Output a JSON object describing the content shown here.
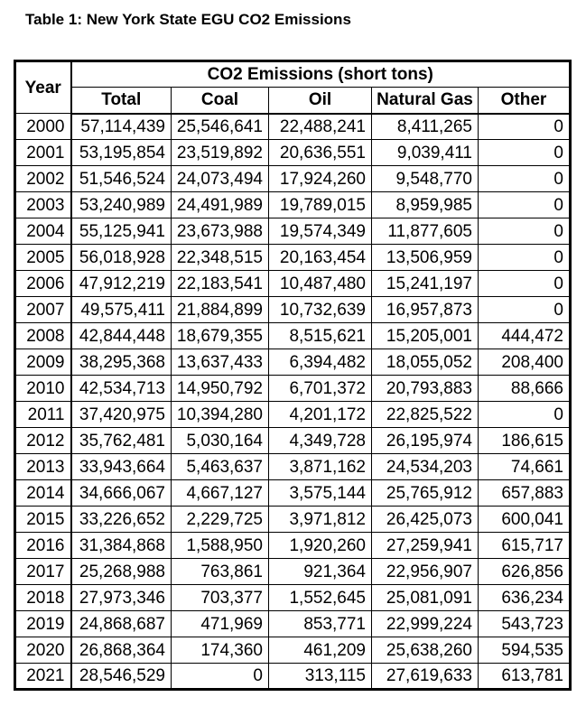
{
  "title": "Table 1: New York State EGU CO2 Emissions",
  "colors": {
    "border": "#000000",
    "text": "#000000",
    "background": "#ffffff"
  },
  "table": {
    "header": {
      "year_label": "Year",
      "group_label": "CO2 Emissions (short tons)",
      "columns": [
        "Total",
        "Coal",
        "Oil",
        "Natural Gas",
        "Other"
      ]
    },
    "rows": [
      {
        "year": "2000",
        "total": "57,114,439",
        "coal": "25,546,641",
        "oil": "22,488,241",
        "natural_gas": "8,411,265",
        "other": "0"
      },
      {
        "year": "2001",
        "total": "53,195,854",
        "coal": "23,519,892",
        "oil": "20,636,551",
        "natural_gas": "9,039,411",
        "other": "0"
      },
      {
        "year": "2002",
        "total": "51,546,524",
        "coal": "24,073,494",
        "oil": "17,924,260",
        "natural_gas": "9,548,770",
        "other": "0"
      },
      {
        "year": "2003",
        "total": "53,240,989",
        "coal": "24,491,989",
        "oil": "19,789,015",
        "natural_gas": "8,959,985",
        "other": "0"
      },
      {
        "year": "2004",
        "total": "55,125,941",
        "coal": "23,673,988",
        "oil": "19,574,349",
        "natural_gas": "11,877,605",
        "other": "0"
      },
      {
        "year": "2005",
        "total": "56,018,928",
        "coal": "22,348,515",
        "oil": "20,163,454",
        "natural_gas": "13,506,959",
        "other": "0"
      },
      {
        "year": "2006",
        "total": "47,912,219",
        "coal": "22,183,541",
        "oil": "10,487,480",
        "natural_gas": "15,241,197",
        "other": "0"
      },
      {
        "year": "2007",
        "total": "49,575,411",
        "coal": "21,884,899",
        "oil": "10,732,639",
        "natural_gas": "16,957,873",
        "other": "0"
      },
      {
        "year": "2008",
        "total": "42,844,448",
        "coal": "18,679,355",
        "oil": "8,515,621",
        "natural_gas": "15,205,001",
        "other": "444,472"
      },
      {
        "year": "2009",
        "total": "38,295,368",
        "coal": "13,637,433",
        "oil": "6,394,482",
        "natural_gas": "18,055,052",
        "other": "208,400"
      },
      {
        "year": "2010",
        "total": "42,534,713",
        "coal": "14,950,792",
        "oil": "6,701,372",
        "natural_gas": "20,793,883",
        "other": "88,666"
      },
      {
        "year": "2011",
        "total": "37,420,975",
        "coal": "10,394,280",
        "oil": "4,201,172",
        "natural_gas": "22,825,522",
        "other": "0"
      },
      {
        "year": "2012",
        "total": "35,762,481",
        "coal": "5,030,164",
        "oil": "4,349,728",
        "natural_gas": "26,195,974",
        "other": "186,615"
      },
      {
        "year": "2013",
        "total": "33,943,664",
        "coal": "5,463,637",
        "oil": "3,871,162",
        "natural_gas": "24,534,203",
        "other": "74,661"
      },
      {
        "year": "2014",
        "total": "34,666,067",
        "coal": "4,667,127",
        "oil": "3,575,144",
        "natural_gas": "25,765,912",
        "other": "657,883"
      },
      {
        "year": "2015",
        "total": "33,226,652",
        "coal": "2,229,725",
        "oil": "3,971,812",
        "natural_gas": "26,425,073",
        "other": "600,041"
      },
      {
        "year": "2016",
        "total": "31,384,868",
        "coal": "1,588,950",
        "oil": "1,920,260",
        "natural_gas": "27,259,941",
        "other": "615,717"
      },
      {
        "year": "2017",
        "total": "25,268,988",
        "coal": "763,861",
        "oil": "921,364",
        "natural_gas": "22,956,907",
        "other": "626,856"
      },
      {
        "year": "2018",
        "total": "27,973,346",
        "coal": "703,377",
        "oil": "1,552,645",
        "natural_gas": "25,081,091",
        "other": "636,234"
      },
      {
        "year": "2019",
        "total": "24,868,687",
        "coal": "471,969",
        "oil": "853,771",
        "natural_gas": "22,999,224",
        "other": "543,723"
      },
      {
        "year": "2020",
        "total": "26,868,364",
        "coal": "174,360",
        "oil": "461,209",
        "natural_gas": "25,638,260",
        "other": "594,535"
      },
      {
        "year": "2021",
        "total": "28,546,529",
        "coal": "0",
        "oil": "313,115",
        "natural_gas": "27,619,633",
        "other": "613,781"
      }
    ]
  },
  "chart_data": {
    "type": "table",
    "title": "Table 1: New York State EGU CO2 Emissions",
    "unit": "short tons",
    "x": [
      2000,
      2001,
      2002,
      2003,
      2004,
      2005,
      2006,
      2007,
      2008,
      2009,
      2010,
      2011,
      2012,
      2013,
      2014,
      2015,
      2016,
      2017,
      2018,
      2019,
      2020,
      2021
    ],
    "series": [
      {
        "name": "Total",
        "values": [
          57114439,
          53195854,
          51546524,
          53240989,
          55125941,
          56018928,
          47912219,
          49575411,
          42844448,
          38295368,
          42534713,
          37420975,
          35762481,
          33943664,
          34666067,
          33226652,
          31384868,
          25268988,
          27973346,
          24868687,
          26868364,
          28546529
        ]
      },
      {
        "name": "Coal",
        "values": [
          25546641,
          23519892,
          24073494,
          24491989,
          23673988,
          22348515,
          22183541,
          21884899,
          18679355,
          13637433,
          14950792,
          10394280,
          5030164,
          5463637,
          4667127,
          2229725,
          1588950,
          763861,
          703377,
          471969,
          174360,
          0
        ]
      },
      {
        "name": "Oil",
        "values": [
          22488241,
          20636551,
          17924260,
          19789015,
          19574349,
          20163454,
          10487480,
          10732639,
          8515621,
          6394482,
          6701372,
          4201172,
          4349728,
          3871162,
          3575144,
          3971812,
          1920260,
          921364,
          1552645,
          853771,
          461209,
          313115
        ]
      },
      {
        "name": "Natural Gas",
        "values": [
          8411265,
          9039411,
          9548770,
          8959985,
          11877605,
          13506959,
          15241197,
          16957873,
          15205001,
          18055052,
          20793883,
          22825522,
          26195974,
          24534203,
          25765912,
          26425073,
          27259941,
          22956907,
          25081091,
          22999224,
          25638260,
          27619633
        ]
      },
      {
        "name": "Other",
        "values": [
          0,
          0,
          0,
          0,
          0,
          0,
          0,
          0,
          444472,
          208400,
          88666,
          0,
          186615,
          74661,
          657883,
          600041,
          615717,
          626856,
          636234,
          543723,
          594535,
          613781
        ]
      }
    ]
  }
}
